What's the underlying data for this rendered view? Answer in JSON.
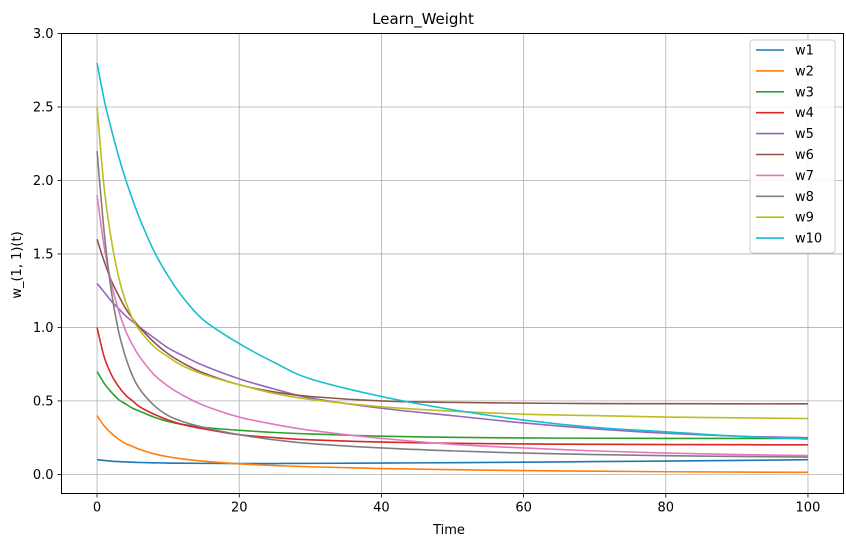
{
  "chart_data": {
    "type": "line",
    "title": "Learn_Weight",
    "xlabel": "Time",
    "ylabel": "w_(1, 1)(t)",
    "xlim": [
      -5,
      105
    ],
    "ylim": [
      -0.13,
      3.0
    ],
    "xticks": [
      0,
      20,
      40,
      60,
      80,
      100
    ],
    "xtick_labels": [
      "0",
      "20",
      "40",
      "60",
      "80",
      "100"
    ],
    "yticks": [
      0.0,
      0.5,
      1.0,
      1.5,
      2.0,
      2.5,
      3.0
    ],
    "ytick_labels": [
      "0.0",
      "0.5",
      "1.0",
      "1.5",
      "2.0",
      "2.5",
      "3.0"
    ],
    "grid": true,
    "legend_position": "top-right",
    "x": [
      0,
      1,
      2,
      3,
      4,
      5,
      6,
      8,
      10,
      12,
      15,
      20,
      25,
      30,
      40,
      50,
      60,
      70,
      80,
      90,
      100
    ],
    "series": [
      {
        "name": "w1",
        "color": "#1f77b4",
        "values": [
          0.1,
          0.095,
          0.09,
          0.087,
          0.085,
          0.083,
          0.081,
          0.079,
          0.077,
          0.076,
          0.075,
          0.074,
          0.074,
          0.075,
          0.077,
          0.08,
          0.083,
          0.087,
          0.091,
          0.095,
          0.1
        ]
      },
      {
        "name": "w2",
        "color": "#ff7f0e",
        "values": [
          0.4,
          0.33,
          0.28,
          0.24,
          0.21,
          0.19,
          0.17,
          0.14,
          0.12,
          0.105,
          0.09,
          0.072,
          0.06,
          0.052,
          0.04,
          0.032,
          0.026,
          0.022,
          0.018,
          0.016,
          0.014
        ]
      },
      {
        "name": "w3",
        "color": "#2ca02c",
        "values": [
          0.7,
          0.62,
          0.56,
          0.51,
          0.48,
          0.45,
          0.43,
          0.39,
          0.36,
          0.34,
          0.32,
          0.3,
          0.285,
          0.275,
          0.26,
          0.252,
          0.248,
          0.246,
          0.245,
          0.245,
          0.245
        ]
      },
      {
        "name": "w4",
        "color": "#d62728",
        "values": [
          1.0,
          0.8,
          0.68,
          0.6,
          0.54,
          0.5,
          0.46,
          0.41,
          0.37,
          0.34,
          0.31,
          0.27,
          0.25,
          0.235,
          0.22,
          0.212,
          0.207,
          0.205,
          0.203,
          0.202,
          0.201
        ]
      },
      {
        "name": "w5",
        "color": "#9467bd",
        "values": [
          1.3,
          1.24,
          1.18,
          1.13,
          1.08,
          1.04,
          1.0,
          0.93,
          0.86,
          0.81,
          0.74,
          0.65,
          0.58,
          0.52,
          0.45,
          0.4,
          0.35,
          0.31,
          0.28,
          0.26,
          0.25
        ]
      },
      {
        "name": "w6",
        "color": "#8c564b",
        "values": [
          1.6,
          1.45,
          1.32,
          1.22,
          1.13,
          1.06,
          1.0,
          0.9,
          0.82,
          0.76,
          0.69,
          0.61,
          0.56,
          0.53,
          0.5,
          0.49,
          0.485,
          0.482,
          0.481,
          0.48,
          0.48
        ]
      },
      {
        "name": "w7",
        "color": "#e377c2",
        "values": [
          1.9,
          1.55,
          1.3,
          1.12,
          0.98,
          0.88,
          0.8,
          0.68,
          0.6,
          0.54,
          0.47,
          0.39,
          0.34,
          0.3,
          0.245,
          0.205,
          0.18,
          0.16,
          0.145,
          0.135,
          0.128
        ]
      },
      {
        "name": "w8",
        "color": "#7f7f7f",
        "values": [
          2.2,
          1.65,
          1.25,
          0.98,
          0.8,
          0.67,
          0.58,
          0.47,
          0.4,
          0.36,
          0.32,
          0.27,
          0.235,
          0.21,
          0.18,
          0.16,
          0.145,
          0.135,
          0.127,
          0.122,
          0.118
        ]
      },
      {
        "name": "w9",
        "color": "#bcbd22",
        "values": [
          2.5,
          1.95,
          1.6,
          1.35,
          1.18,
          1.06,
          0.98,
          0.87,
          0.8,
          0.74,
          0.68,
          0.61,
          0.55,
          0.51,
          0.46,
          0.43,
          0.41,
          0.4,
          0.39,
          0.385,
          0.38
        ]
      },
      {
        "name": "w10",
        "color": "#17becf",
        "values": [
          2.8,
          2.55,
          2.35,
          2.17,
          2.01,
          1.87,
          1.74,
          1.52,
          1.35,
          1.21,
          1.05,
          0.89,
          0.76,
          0.65,
          0.53,
          0.44,
          0.37,
          0.32,
          0.29,
          0.26,
          0.24
        ]
      }
    ]
  }
}
